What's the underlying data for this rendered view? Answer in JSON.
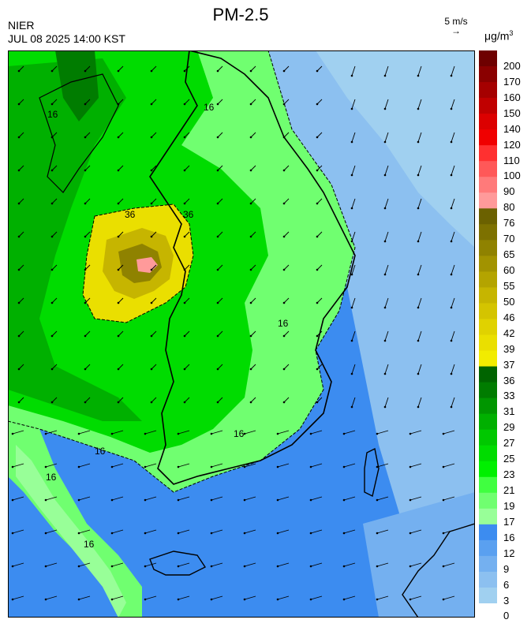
{
  "header": {
    "org": "NIER",
    "datetime": "JUL 08 2025 14:00 KST",
    "title": "PM-2.5",
    "wind_ref_label": "5 m/s",
    "unit_prefix": "μg/m",
    "unit_power": "3"
  },
  "legend": {
    "labels": [
      "200",
      "170",
      "160",
      "150",
      "140",
      "120",
      "110",
      "100",
      "90",
      "80",
      "76",
      "70",
      "65",
      "60",
      "55",
      "50",
      "46",
      "42",
      "39",
      "37",
      "36",
      "33",
      "31",
      "29",
      "27",
      "25",
      "23",
      "21",
      "19",
      "17",
      "16",
      "12",
      "9",
      "6",
      "3",
      "0"
    ],
    "colors": [
      "#6e0000",
      "#8a0000",
      "#a50000",
      "#c00000",
      "#dc0000",
      "#f00000",
      "#ff3030",
      "#ff5858",
      "#ff7a7a",
      "#ff9a9a",
      "#6b6100",
      "#7d7100",
      "#8f8200",
      "#a29300",
      "#b4a400",
      "#c6b500",
      "#d4c400",
      "#e0d200",
      "#eadf00",
      "#f2ec00",
      "#006400",
      "#007c00",
      "#009600",
      "#00b000",
      "#00c800",
      "#00dc00",
      "#00f000",
      "#40ff40",
      "#70ff70",
      "#98ff98",
      "#3c8cf0",
      "#5aa0f0",
      "#74b0f0",
      "#8cc0f0",
      "#a0d0f0"
    ]
  },
  "map": {
    "contour_labels": [
      "36",
      "36",
      "16",
      "16",
      "16",
      "16",
      "16",
      "16",
      "16"
    ]
  }
}
